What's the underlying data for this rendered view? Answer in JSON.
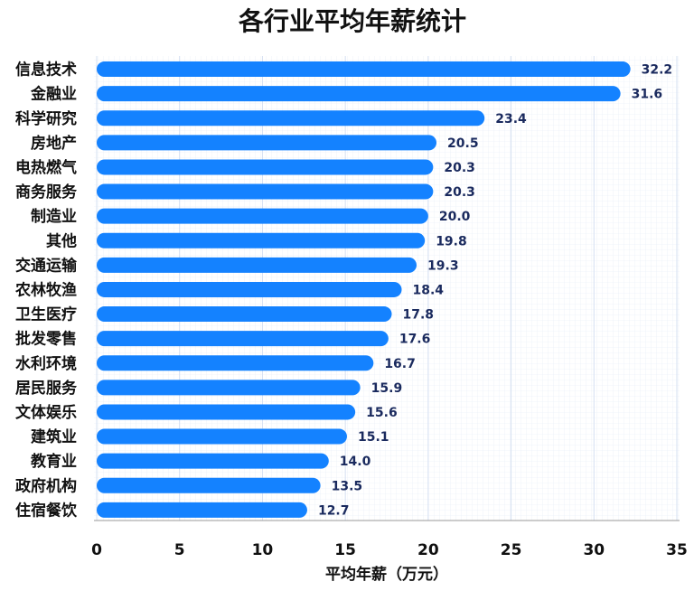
{
  "chart_data": {
    "type": "bar",
    "orientation": "horizontal",
    "title": "各行业平均年薪统计",
    "xlabel": "平均年薪（万元）",
    "ylabel": "",
    "xlim": [
      0,
      35
    ],
    "xticks": [
      0,
      5,
      10,
      15,
      20,
      25,
      30,
      35
    ],
    "grid": true,
    "bar_color": "#1482ff",
    "value_label_color": "#1a2a5e",
    "categories": [
      "信息技术",
      "金融业",
      "科学研究",
      "房地产",
      "电热燃气",
      "商务服务",
      "制造业",
      "其他",
      "交通运输",
      "农林牧渔",
      "卫生医疗",
      "批发零售",
      "水利环境",
      "居民服务",
      "文体娱乐",
      "建筑业",
      "教育业",
      "政府机构",
      "住宿餐饮"
    ],
    "values": [
      32.2,
      31.6,
      23.4,
      20.5,
      20.3,
      20.3,
      20.0,
      19.8,
      19.3,
      18.4,
      17.8,
      17.6,
      16.7,
      15.9,
      15.6,
      15.1,
      14.0,
      13.5,
      12.7
    ],
    "value_labels": [
      "32.2",
      "31.6",
      "23.4",
      "20.5",
      "20.3",
      "20.3",
      "20.0",
      "19.8",
      "19.3",
      "18.4",
      "17.8",
      "17.6",
      "16.7",
      "15.9",
      "15.6",
      "15.1",
      "14.0",
      "13.5",
      "12.7"
    ]
  }
}
